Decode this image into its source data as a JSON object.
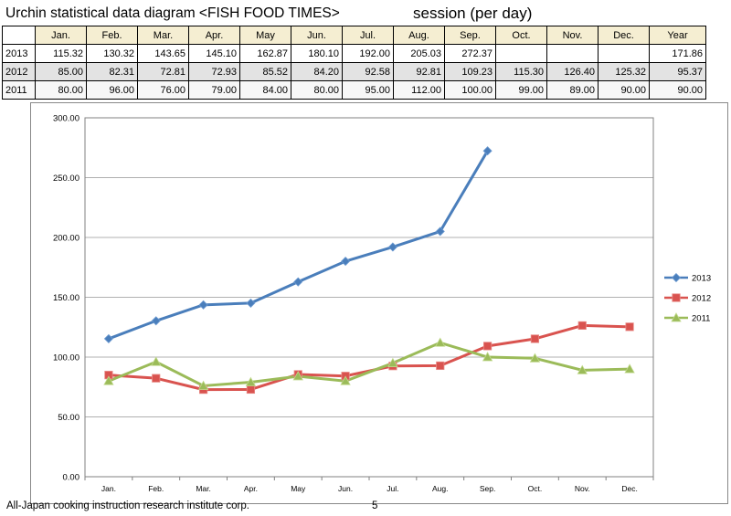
{
  "header": {
    "title": "Urchin statistical data diagram <FISH FOOD TIMES>",
    "session": "session (per day)"
  },
  "table": {
    "columns": [
      "Jan.",
      "Feb.",
      "Mar.",
      "Apr.",
      "May",
      "Jun.",
      "Jul.",
      "Aug.",
      "Sep.",
      "Oct.",
      "Nov.",
      "Dec.",
      "Year"
    ],
    "rows": [
      {
        "year": "2013",
        "values": [
          "115.32",
          "130.32",
          "143.65",
          "145.10",
          "162.87",
          "180.10",
          "192.00",
          "205.03",
          "272.37",
          "",
          "",
          "",
          "171.86"
        ]
      },
      {
        "year": "2012",
        "values": [
          "85.00",
          "82.31",
          "72.81",
          "72.93",
          "85.52",
          "84.20",
          "92.58",
          "92.81",
          "109.23",
          "115.30",
          "126.40",
          "125.32",
          "95.37"
        ]
      },
      {
        "year": "2011",
        "values": [
          "80.00",
          "96.00",
          "76.00",
          "79.00",
          "84.00",
          "80.00",
          "95.00",
          "112.00",
          "100.00",
          "99.00",
          "89.00",
          "90.00",
          "90.00"
        ]
      }
    ]
  },
  "chart_data": {
    "type": "line",
    "categories": [
      "Jan.",
      "Feb.",
      "Mar.",
      "Apr.",
      "May",
      "Jun.",
      "Jul.",
      "Aug.",
      "Sep.",
      "Oct.",
      "Nov.",
      "Dec."
    ],
    "series": [
      {
        "name": "2013",
        "color": "#4a7ebb",
        "marker": "diamond",
        "values": [
          115.32,
          130.32,
          143.65,
          145.1,
          162.87,
          180.1,
          192.0,
          205.03,
          272.37,
          null,
          null,
          null
        ]
      },
      {
        "name": "2012",
        "color": "#d9534f",
        "marker": "square",
        "values": [
          85.0,
          82.31,
          72.81,
          72.93,
          85.52,
          84.2,
          92.58,
          92.81,
          109.23,
          115.3,
          126.4,
          125.32
        ]
      },
      {
        "name": "2011",
        "color": "#9bbb59",
        "marker": "triangle",
        "values": [
          80.0,
          96.0,
          76.0,
          79.0,
          84.0,
          80.0,
          95.0,
          112.0,
          100.0,
          99.0,
          89.0,
          90.0
        ]
      }
    ],
    "yticks": [
      "0.00",
      "50.00",
      "100.00",
      "150.00",
      "200.00",
      "250.00",
      "300.00"
    ],
    "ylim": [
      0,
      300
    ],
    "grid": true,
    "legend_position": "right"
  },
  "footer": {
    "organization": "All-Japan cooking instruction research institute corp.",
    "page_number": "5"
  }
}
